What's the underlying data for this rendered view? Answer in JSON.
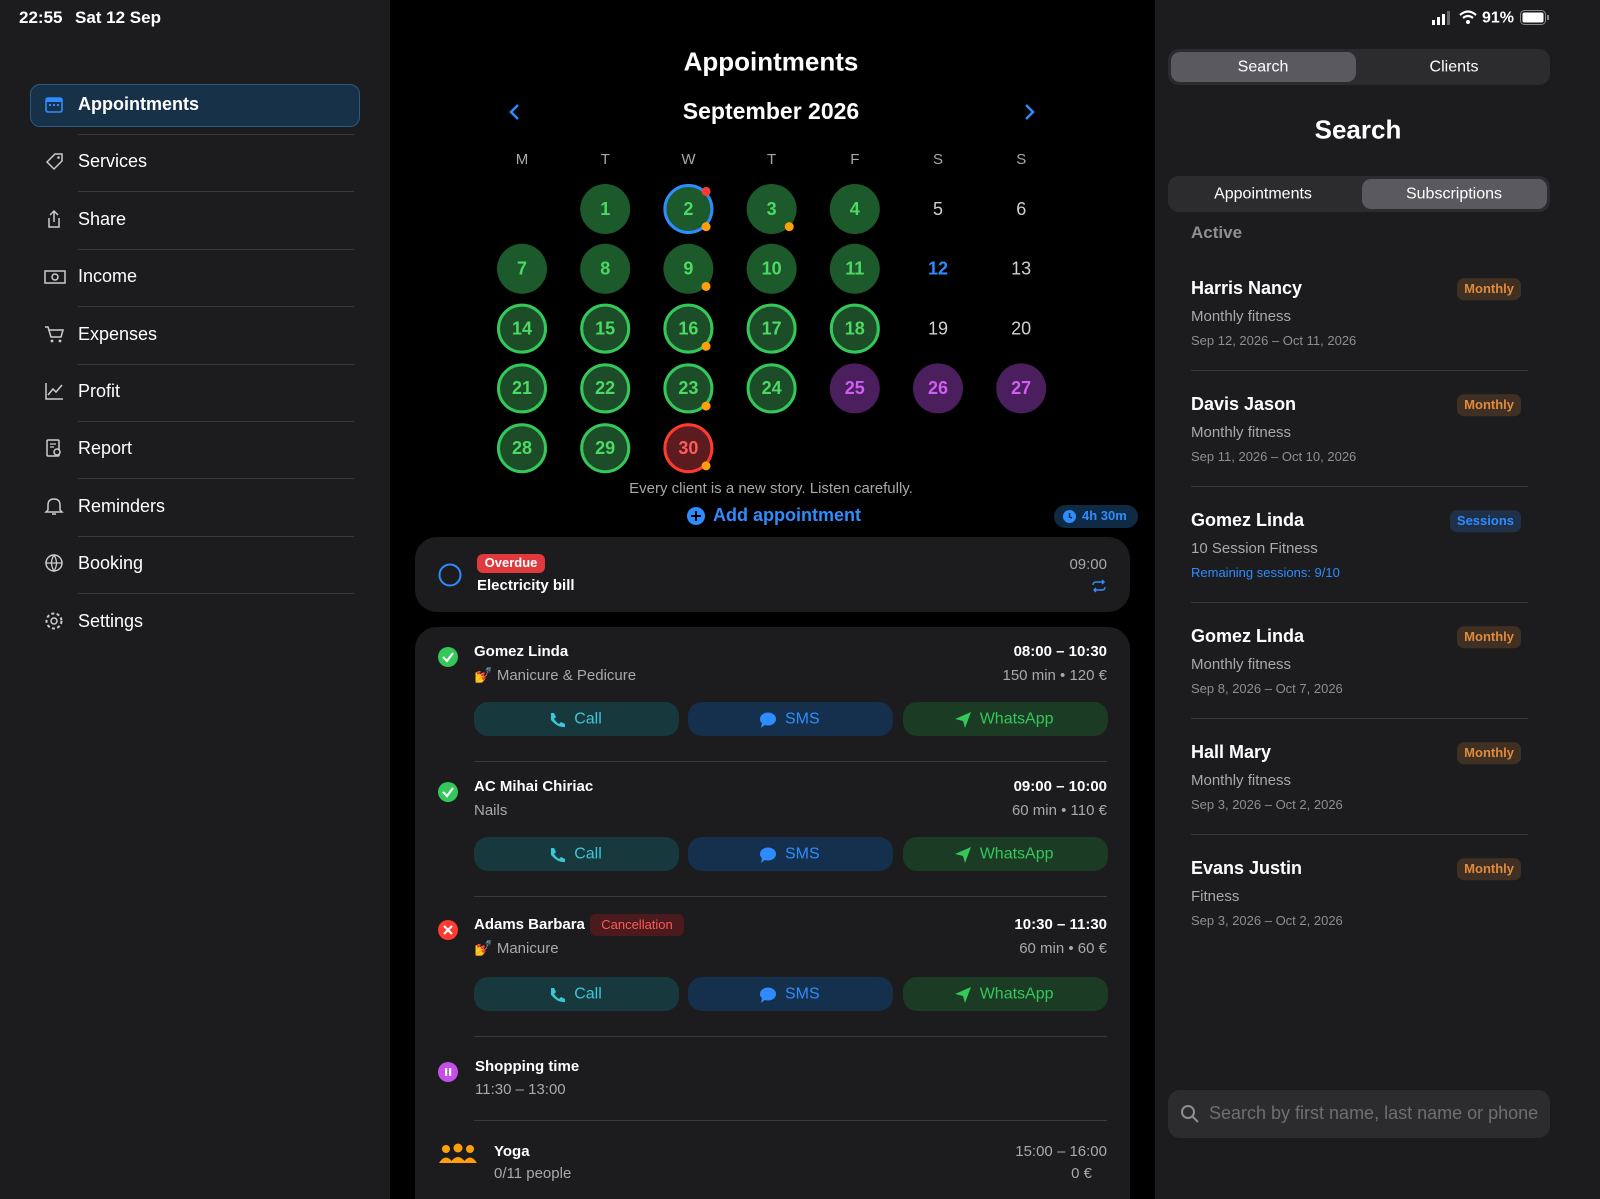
{
  "status_bar": {
    "time": "22:55",
    "date": "Sat 12 Sep",
    "battery": "91%"
  },
  "sidebar": {
    "items": [
      "Appointments",
      "Services",
      "Share",
      "Income",
      "Expenses",
      "Profit",
      "Report",
      "Reminders",
      "Booking",
      "Settings"
    ]
  },
  "calendar": {
    "title": "Appointments",
    "month": "September 2026",
    "weekdays": [
      "M",
      "T",
      "W",
      "T",
      "F",
      "S",
      "S"
    ],
    "weeks": [
      [
        null,
        {
          "day": 1,
          "fill": "#1d5a2b",
          "text": "#4cd964"
        },
        {
          "day": 2,
          "fill": "#1d5a2b",
          "text": "#4cd964",
          "ring": "#2f8cff",
          "dots": [
            "#ff3b30",
            "#ff9f0a"
          ]
        },
        {
          "day": 3,
          "fill": "#1d5a2b",
          "text": "#4cd964",
          "dots": [
            "#ff9f0a"
          ]
        },
        {
          "day": 4,
          "fill": "#1d5a2b",
          "text": "#4cd964"
        },
        {
          "day": 5,
          "text": "#d0d0d0"
        },
        {
          "day": 6,
          "text": "#d0d0d0"
        }
      ],
      [
        {
          "day": 7,
          "fill": "#1d5a2b",
          "text": "#4cd964"
        },
        {
          "day": 8,
          "fill": "#1d5a2b",
          "text": "#4cd964"
        },
        {
          "day": 9,
          "fill": "#1d5a2b",
          "text": "#4cd964",
          "dots": [
            "#ff9f0a"
          ]
        },
        {
          "day": 10,
          "fill": "#1d5a2b",
          "text": "#4cd964"
        },
        {
          "day": 11,
          "fill": "#1d5a2b",
          "text": "#4cd964"
        },
        {
          "day": 12,
          "text": "#2f8cff"
        },
        {
          "day": 13,
          "text": "#d0d0d0"
        }
      ],
      [
        {
          "day": 14,
          "fill": "#1d4d28",
          "text": "#4cd964",
          "ring": "#34c759"
        },
        {
          "day": 15,
          "fill": "#1d4d28",
          "text": "#4cd964",
          "ring": "#34c759"
        },
        {
          "day": 16,
          "fill": "#1d4d28",
          "text": "#4cd964",
          "ring": "#34c759",
          "dots": [
            "#ff9f0a"
          ]
        },
        {
          "day": 17,
          "fill": "#1d4d28",
          "text": "#4cd964",
          "ring": "#34c759"
        },
        {
          "day": 18,
          "fill": "#1d4d28",
          "text": "#4cd964",
          "ring": "#34c759"
        },
        {
          "day": 19,
          "text": "#d0d0d0"
        },
        {
          "day": 20,
          "text": "#d0d0d0"
        }
      ],
      [
        {
          "day": 21,
          "fill": "#1d4d28",
          "text": "#4cd964",
          "ring": "#34c759"
        },
        {
          "day": 22,
          "fill": "#1d4d28",
          "text": "#4cd964",
          "ring": "#34c759"
        },
        {
          "day": 23,
          "fill": "#1d4d28",
          "text": "#4cd964",
          "ring": "#34c759",
          "dots": [
            "#ff9f0a"
          ]
        },
        {
          "day": 24,
          "fill": "#1d4d28",
          "text": "#4cd964",
          "ring": "#34c759"
        },
        {
          "day": 25,
          "fill": "#4b1f5e",
          "text": "#d35cf5"
        },
        {
          "day": 26,
          "fill": "#4b1f5e",
          "text": "#d35cf5"
        },
        {
          "day": 27,
          "fill": "#4b1f5e",
          "text": "#d35cf5"
        }
      ],
      [
        {
          "day": 28,
          "fill": "#1d4d28",
          "text": "#4cd964",
          "ring": "#34c759"
        },
        {
          "day": 29,
          "fill": "#1d4d28",
          "text": "#4cd964",
          "ring": "#34c759"
        },
        {
          "day": 30,
          "fill": "#5c1b1e",
          "text": "#ff5b5b",
          "ring": "#ff3b30",
          "dots": [
            "#ff9f0a"
          ]
        },
        null,
        null,
        null,
        null
      ]
    ],
    "quote": "Every client is a new story. Listen carefully.",
    "add_label": "Add appointment",
    "total": "4h 30m"
  },
  "task": {
    "tag": "Overdue",
    "title": "Electricity bill",
    "time": "09:00"
  },
  "actions": [
    "Call",
    "SMS",
    "WhatsApp"
  ],
  "appointments": [
    {
      "name": "Gomez Linda",
      "service": "💅 Manicure & Pedicure",
      "time": "08:00 – 10:30",
      "details": "150 min • 120 €",
      "color": "#34c759"
    },
    {
      "name": "AC Mihai Chiriac",
      "service": "Nails",
      "time": "09:00 – 10:00",
      "details": "60 min • 110 €",
      "color": "#34c759"
    },
    {
      "name": "Adams Barbara",
      "tag": "Cancellation",
      "service": "💅 Manicure",
      "time": "10:30 – 11:30",
      "details": "60 min • 60 €",
      "color": "#ff3b30"
    }
  ],
  "breaks": [
    {
      "name": "Shopping time",
      "time": "11:30 – 13:00",
      "color": "#c64ee6"
    }
  ],
  "group": {
    "name": "Yoga",
    "time": "15:00 – 16:00",
    "people": "0/11 people",
    "price": "0 €",
    "color": "#ff9f0a"
  },
  "search_panel": {
    "tabs": [
      "Search",
      "Clients"
    ],
    "title": "Search",
    "segments": [
      "Appointments",
      "Subscriptions"
    ],
    "section": "Active",
    "subscriptions": [
      {
        "name": "Harris Nancy",
        "tag": "Monthly",
        "tag_color": "#e08a3c",
        "plan": "Monthly fitness",
        "dates": "Sep 12, 2026 – Oct 11, 2026"
      },
      {
        "name": "Davis Jason",
        "tag": "Monthly",
        "tag_color": "#e08a3c",
        "plan": "Monthly fitness",
        "dates": "Sep 11, 2026 – Oct 10, 2026"
      },
      {
        "name": "Gomez Linda",
        "tag": "Sessions",
        "tag_color": "#2f8cff",
        "plan": "10 Session Fitness",
        "remaining": "Remaining sessions: 9/10"
      },
      {
        "name": "Gomez Linda",
        "tag": "Monthly",
        "tag_color": "#e08a3c",
        "plan": "Monthly fitness",
        "dates": "Sep 8, 2026 – Oct 7, 2026"
      },
      {
        "name": "Hall Mary",
        "tag": "Monthly",
        "tag_color": "#e08a3c",
        "plan": "Monthly fitness",
        "dates": "Sep 3, 2026 – Oct 2, 2026"
      },
      {
        "name": "Evans Justin",
        "tag": "Monthly",
        "tag_color": "#e08a3c",
        "plan": "Fitness",
        "dates": "Sep 3, 2026 – Oct 2, 2026"
      }
    ],
    "placeholder": "Search by first name, last name or phone"
  }
}
